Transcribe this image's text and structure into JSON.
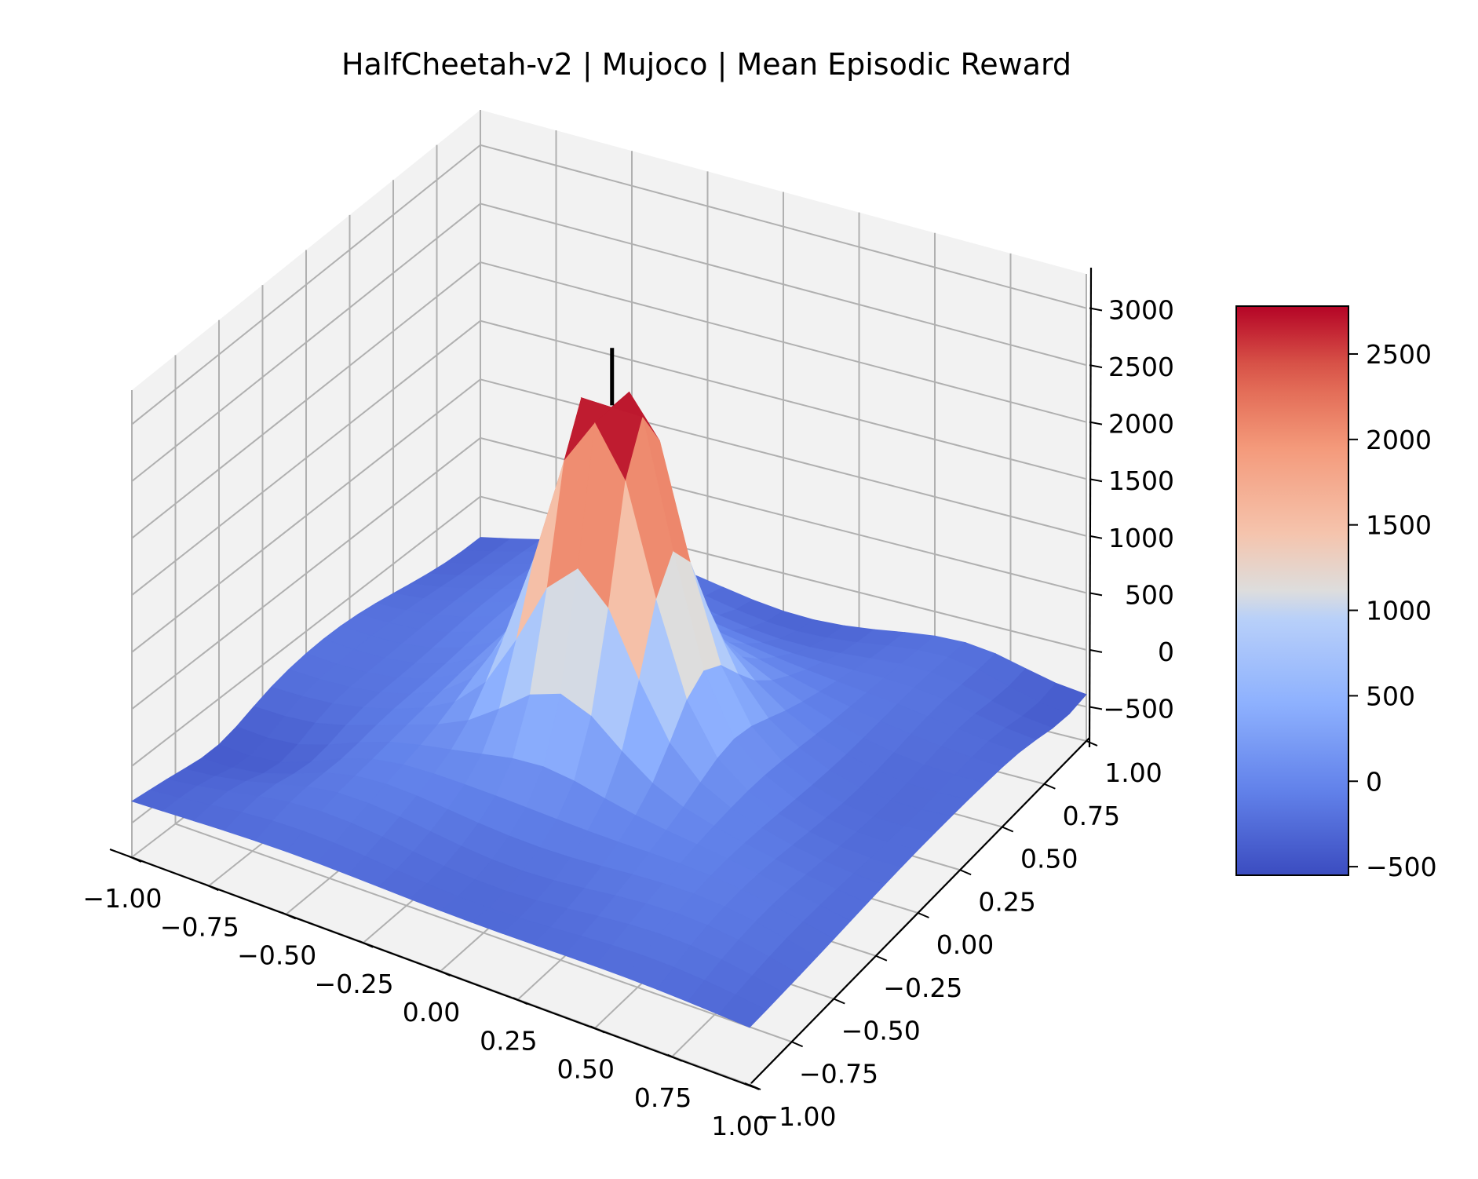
{
  "chart_data": {
    "type": "surface3d",
    "title": "HalfCheetah-v2 | Mujoco | Mean Episodic Reward",
    "xlabel": "",
    "ylabel": "",
    "zlabel": "",
    "xlim": [
      -1.0,
      1.0
    ],
    "ylim": [
      -1.0,
      1.0
    ],
    "zlim": [
      -800,
      3300
    ],
    "x_ticks": [
      "−1.00",
      "−0.75",
      "−0.50",
      "−0.25",
      "0.00",
      "0.25",
      "0.50",
      "0.75",
      "1.00"
    ],
    "y_ticks": [
      "−1.00",
      "−0.75",
      "−0.50",
      "−0.25",
      "0.00",
      "0.25",
      "0.50",
      "0.75",
      "1.00"
    ],
    "z_ticks": [
      "−500",
      "0",
      "500",
      "1000",
      "1500",
      "2000",
      "2500",
      "3000"
    ],
    "colorbar": {
      "colormap": "coolwarm",
      "range": [
        -550,
        2780
      ],
      "ticks": [
        "−500",
        "0",
        "500",
        "1000",
        "1500",
        "2000",
        "2500"
      ],
      "colors": {
        "low": "#3b4cc0",
        "mid": "#dddddd",
        "high": "#b40426"
      }
    },
    "surface": {
      "grid": "21x21 over x,y in [-1,1]",
      "peak": {
        "x": 0.0,
        "y": 0.0,
        "z": 2750
      },
      "edge_values": {
        "min": -550,
        "typical": -150
      }
    },
    "marker": {
      "type": "vertical-line",
      "x": 0.0,
      "y": 0.0,
      "z_from": 2800,
      "z_to": 3300,
      "color": "#000000"
    },
    "grid": true
  }
}
